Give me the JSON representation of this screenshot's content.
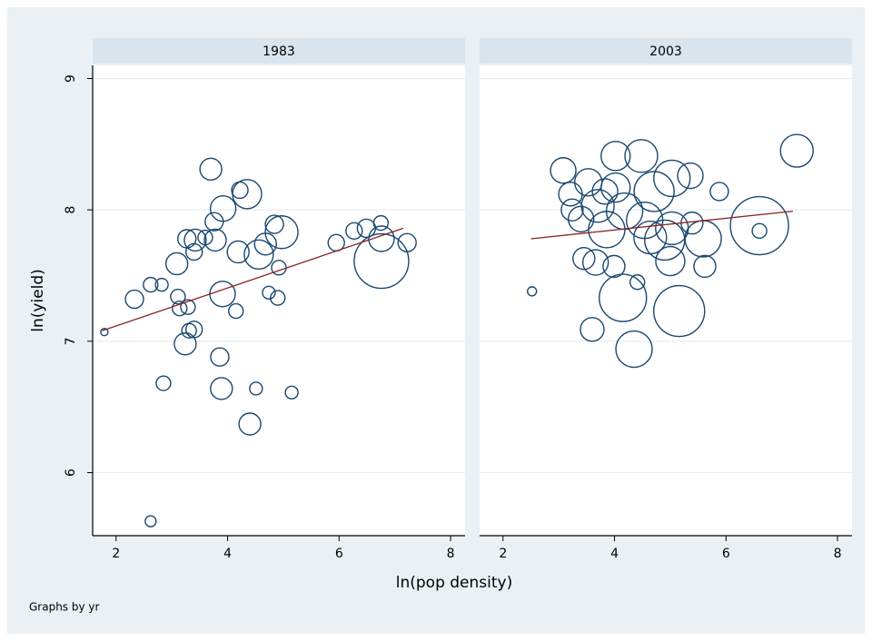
{
  "chart_data": [
    {
      "type": "scatter",
      "title": "1983",
      "xlim": [
        1.58,
        8.26
      ],
      "ylim": [
        5.52,
        9.1
      ],
      "xticks": [
        2,
        4,
        6,
        8
      ],
      "yticks": [
        6,
        7,
        8,
        9
      ],
      "grid": true,
      "series": [
        {
          "type": "bubble",
          "color": "#1a476f",
          "x": [
            1.79,
            2.33,
            2.62,
            2.82,
            2.62,
            2.85,
            3.09,
            3.11,
            3.14,
            3.24,
            3.27,
            3.31,
            3.29,
            3.4,
            3.4,
            3.42,
            3.6,
            3.7,
            3.76,
            3.78,
            3.86,
            3.92,
            3.91,
            3.89,
            4.15,
            4.19,
            4.22,
            4.35,
            4.4,
            4.51,
            4.56,
            4.74,
            4.68,
            4.84,
            4.9,
            4.92,
            4.97,
            5.15,
            5.95,
            6.27,
            6.49,
            6.75,
            6.76,
            6.76,
            7.22
          ],
          "values": [
            7.07,
            7.32,
            7.43,
            7.43,
            5.63,
            6.68,
            7.59,
            7.34,
            7.25,
            6.98,
            7.78,
            7.08,
            7.26,
            7.09,
            7.68,
            7.77,
            7.79,
            8.31,
            7.91,
            7.77,
            6.88,
            8.01,
            7.36,
            6.64,
            7.23,
            7.68,
            8.15,
            8.12,
            6.37,
            6.64,
            7.66,
            7.37,
            7.74,
            7.89,
            7.33,
            7.56,
            7.83,
            6.61,
            7.75,
            7.84,
            7.86,
            7.9,
            7.61,
            7.78,
            7.75
          ],
          "sizes": [
            16,
            100,
            64,
            49,
            36,
            64,
            144,
            64,
            64,
            144,
            100,
            64,
            64,
            81,
            81,
            144,
            64,
            144,
            100,
            144,
            100,
            196,
            196,
            144,
            64,
            144,
            81,
            256,
            144,
            49,
            256,
            49,
            144,
            100,
            64,
            64,
            324,
            49,
            81,
            81,
            100,
            64,
            900,
            196,
            100
          ]
        },
        {
          "type": "line",
          "color": "#8b2323",
          "x": [
            1.75,
            7.15
          ],
          "values": [
            7.08,
            7.86
          ]
        }
      ]
    },
    {
      "type": "scatter",
      "title": "2003",
      "xlim": [
        1.58,
        8.26
      ],
      "ylim": [
        5.52,
        9.1
      ],
      "xticks": [
        2,
        4,
        6,
        8
      ],
      "yticks": [
        6,
        7,
        8,
        9
      ],
      "grid": true,
      "series": [
        {
          "type": "bubble",
          "color": "#1a476f",
          "x": [
            2.52,
            3.08,
            3.21,
            3.24,
            3.4,
            3.45,
            3.53,
            3.6,
            3.66,
            3.7,
            3.83,
            3.86,
            3.99,
            4.02,
            4.02,
            4.15,
            4.18,
            4.35,
            4.41,
            4.48,
            4.54,
            4.64,
            4.71,
            4.9,
            5.03,
            5.0,
            5.03,
            5.16,
            5.36,
            5.39,
            5.59,
            5.62,
            5.88,
            6.6,
            6.6,
            7.27
          ],
          "values": [
            7.38,
            8.3,
            8.12,
            8.0,
            7.93,
            7.63,
            8.21,
            7.09,
            7.6,
            8.03,
            8.14,
            7.85,
            7.57,
            8.41,
            8.17,
            7.33,
            7.99,
            6.94,
            7.45,
            8.41,
            7.92,
            7.79,
            8.14,
            7.77,
            8.24,
            7.61,
            7.86,
            7.23,
            8.26,
            7.9,
            7.78,
            7.57,
            8.14,
            7.88,
            7.84,
            8.45
          ],
          "sizes": [
            25,
            196,
            169,
            144,
            196,
            144,
            225,
            169,
            196,
            324,
            196,
            400,
            144,
            256,
            256,
            676,
            400,
            400,
            64,
            324,
            400,
            324,
            484,
            484,
            400,
            256,
            324,
            784,
            196,
            144,
            400,
            144,
            100,
            1024,
            64,
            324
          ]
        },
        {
          "type": "line",
          "color": "#8b2323",
          "x": [
            2.5,
            7.2
          ],
          "values": [
            7.78,
            7.99
          ]
        }
      ]
    }
  ],
  "xlabel": "ln(pop density)",
  "ylabel": "ln(yield)",
  "note": "Graphs by yr"
}
